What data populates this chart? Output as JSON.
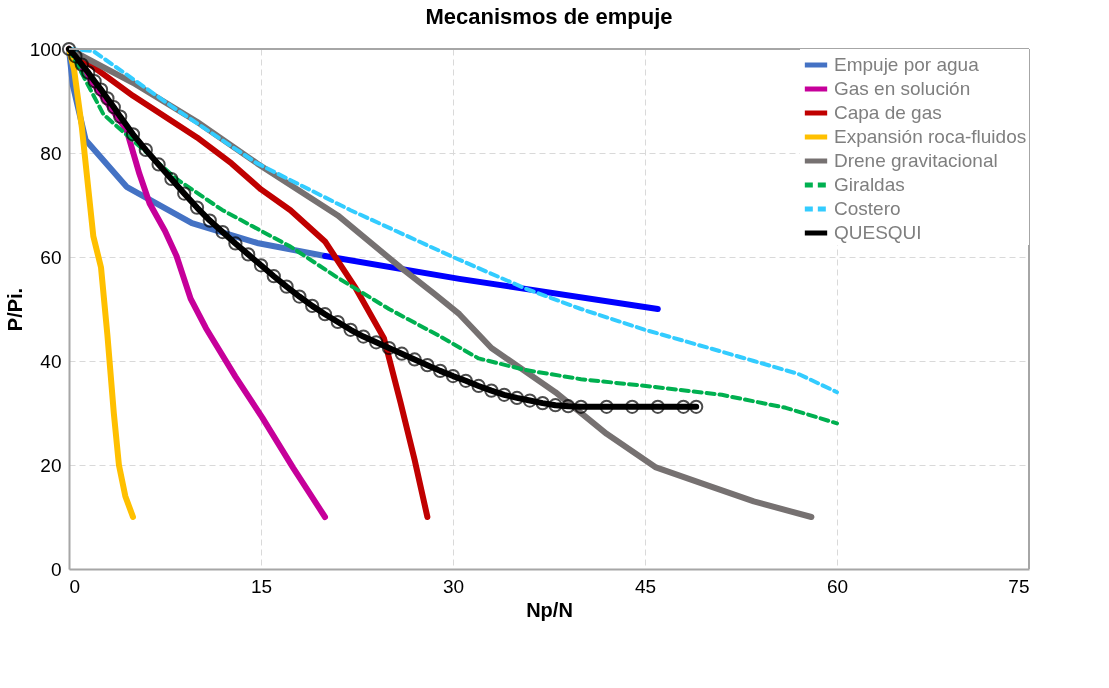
{
  "chart_data": {
    "type": "line",
    "title": "Mecanismos de empuje",
    "xlabel": "Np/N",
    "ylabel": "P/Pi.",
    "xlim": [
      0,
      75
    ],
    "ylim": [
      0,
      100
    ],
    "xticks": [
      0,
      15,
      30,
      45,
      60,
      75
    ],
    "yticks": [
      0,
      20,
      40,
      60,
      80,
      100
    ],
    "grid": true,
    "legend": "top right",
    "series": [
      {
        "name": "Empuje por agua",
        "color": "#4472c4",
        "line_style": "solid",
        "x": [
          0,
          0.3,
          1.3,
          4.5,
          9.6,
          14.7,
          20
        ],
        "values": [
          100,
          93,
          82.5,
          73.5,
          66.5,
          62.7,
          60.2
        ]
      },
      {
        "color": "#0000ff",
        "line_style": "solid",
        "x": [
          20,
          30.5,
          46
        ],
        "values": [
          60.2,
          55.8,
          50
        ]
      },
      {
        "name": "Gas en solución",
        "color": "#c6009a",
        "line_style": "solid",
        "x": [
          0,
          2,
          4.5,
          5.5,
          6.3,
          7.5,
          8.4,
          9.5,
          10.7,
          13,
          15.1,
          17.5,
          20
        ],
        "values": [
          100,
          93,
          84.4,
          76,
          70.3,
          65,
          60.2,
          52,
          46.3,
          37,
          29.1,
          19.5,
          10
        ]
      },
      {
        "name": "Capa de gas",
        "color": "#c00000",
        "line_style": "solid",
        "x": [
          0,
          5,
          10,
          12.7,
          15,
          17.3,
          20,
          22.4,
          24.6,
          25.9,
          27,
          28
        ],
        "values": [
          100,
          91,
          83,
          78,
          73,
          69,
          63,
          54,
          44.4,
          32,
          21,
          10
        ]
      },
      {
        "name": "Expansión roca-fluidos",
        "color": "#ffc000",
        "line_style": "solid",
        "x": [
          0,
          0.4,
          1,
          1.9,
          2.5,
          3,
          3.5,
          3.9,
          4.4,
          5
        ],
        "values": [
          100,
          96,
          85,
          64,
          58,
          45,
          30,
          20,
          14,
          10
        ]
      },
      {
        "name": "Drene gravitacional",
        "color": "#767171",
        "line_style": "solid",
        "x": [
          0,
          5,
          10,
          14.7,
          21,
          25.9,
          28.5,
          30.5,
          33,
          38,
          42,
          45.8,
          50,
          53.5,
          58
        ],
        "values": [
          100,
          93.5,
          86,
          78,
          68,
          58,
          53,
          49,
          42.5,
          34,
          26,
          19.6,
          16,
          13,
          10
        ]
      },
      {
        "name": "Giraldas",
        "color": "#00b050",
        "line_style": "dashed",
        "x": [
          0,
          2.7,
          8.4,
          12,
          17.3,
          21,
          25,
          28.8,
          32,
          35.6,
          40,
          45.8,
          51,
          56,
          60
        ],
        "values": [
          100,
          87.4,
          75,
          69,
          62,
          56,
          50,
          45,
          40.5,
          38.3,
          36.5,
          35,
          33.5,
          31,
          28
        ]
      },
      {
        "name": "Costero",
        "color": "#33ccff",
        "line_style": "dashed",
        "x": [
          0,
          1.9,
          8,
          14.7,
          22,
          30,
          35.6,
          40,
          45,
          50,
          53.5,
          57,
          60
        ],
        "values": [
          100,
          99.6,
          89,
          78,
          69,
          60,
          54,
          50,
          46,
          42.5,
          40,
          37.5,
          34
        ]
      },
      {
        "name": "QUESQUI",
        "color": "#000000",
        "line_style": "solid",
        "marker": "circle",
        "x": [
          0,
          0.5,
          1,
          1.5,
          2,
          2.5,
          3,
          3.5,
          4,
          5,
          6,
          7,
          8,
          9,
          10,
          11,
          12,
          13,
          14,
          15,
          16,
          17,
          18,
          19,
          20,
          21,
          22,
          23,
          24,
          25,
          26,
          27,
          28,
          29,
          30,
          31,
          32,
          33,
          34,
          35,
          36,
          37,
          38,
          39,
          40,
          42,
          44,
          46,
          48,
          49
        ],
        "values": [
          100,
          98.6,
          97,
          95.5,
          93.8,
          92.2,
          90.5,
          88.8,
          87,
          83.6,
          80.6,
          77.8,
          75,
          72.2,
          69.5,
          67,
          64.8,
          62.6,
          60.5,
          58.4,
          56.3,
          54.3,
          52.4,
          50.6,
          49,
          47.5,
          46,
          44.7,
          43.6,
          42.5,
          41.4,
          40.3,
          39.2,
          38.1,
          37.1,
          36.2,
          35.2,
          34.3,
          33.5,
          32.9,
          32.4,
          31.9,
          31.5,
          31.3,
          31.2,
          31.2,
          31.2,
          31.2,
          31.2,
          31.2
        ]
      }
    ]
  }
}
